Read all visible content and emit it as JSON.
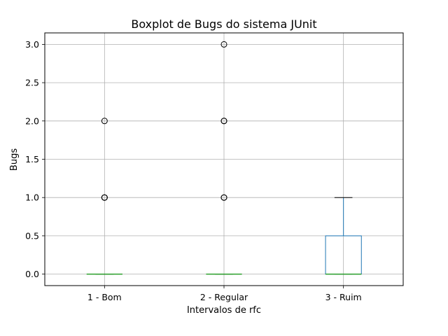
{
  "chart_data": {
    "type": "boxplot",
    "title": "Boxplot de Bugs do sistema JUnit",
    "xlabel": "Intervalos de rfc",
    "ylabel": "Bugs",
    "categories": [
      "1 - Bom",
      "2 - Regular",
      "3 - Ruim"
    ],
    "y_ticks": [
      "0.0",
      "0.5",
      "1.0",
      "1.5",
      "2.0",
      "2.5",
      "3.0"
    ],
    "ylim": [
      -0.15,
      3.15
    ],
    "grid": true,
    "boxes": [
      {
        "category": "1 - Bom",
        "q1": 0,
        "median": 0,
        "q3": 0,
        "whisker_low": 0,
        "whisker_high": 0,
        "outliers": [
          1,
          1,
          1,
          2
        ]
      },
      {
        "category": "2 - Regular",
        "q1": 0,
        "median": 0,
        "q3": 0,
        "whisker_low": 0,
        "whisker_high": 0,
        "outliers": [
          1,
          1,
          2,
          2,
          3
        ]
      },
      {
        "category": "3 - Ruim",
        "q1": 0,
        "median": 0,
        "q3": 0.5,
        "whisker_low": 0,
        "whisker_high": 1,
        "outliers": []
      }
    ],
    "colors": {
      "box": "#1f77b4",
      "median": "#2ca02c",
      "whisker": "#1f77b4",
      "cap": "#000000",
      "grid": "#b0b0b0"
    }
  }
}
